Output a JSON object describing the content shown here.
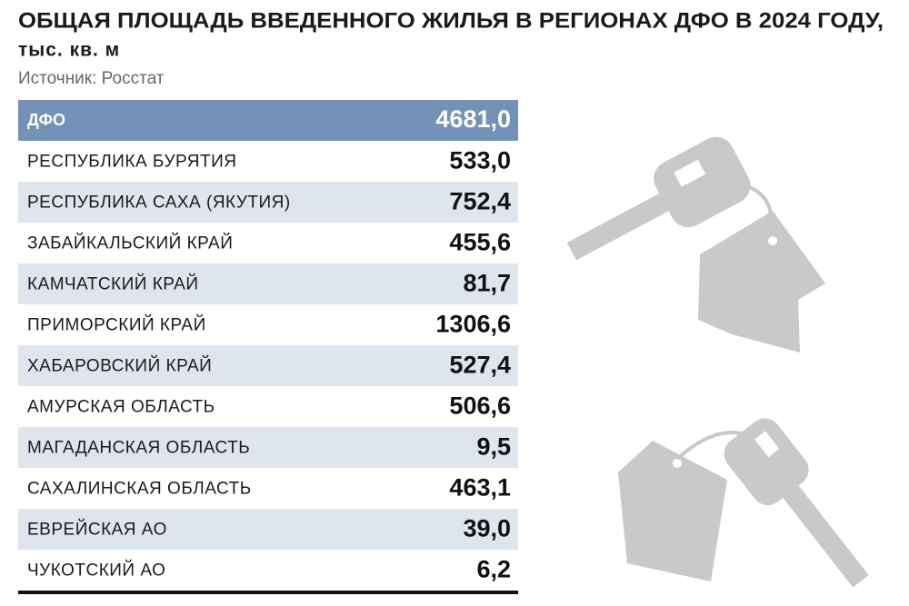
{
  "header": {
    "title": "ОБЩАЯ ПЛОЩАДЬ ВВЕДЕННОГО ЖИЛЬЯ В РЕГИОНАХ ДФО В 2024 ГОДУ,",
    "subtitle": "тыс. кв. м",
    "source": "Источник: Росстат"
  },
  "table": {
    "total": {
      "label": "ДФО",
      "value": "4681,0"
    },
    "rows": [
      {
        "label": "РЕСПУБЛИКА БУРЯТИЯ",
        "value": "533,0"
      },
      {
        "label": "РЕСПУБЛИКА САХА (ЯКУТИЯ)",
        "value": "752,4"
      },
      {
        "label": "ЗАБАЙКАЛЬСКИЙ КРАЙ",
        "value": "455,6"
      },
      {
        "label": "КАМЧАТСКИЙ КРАЙ",
        "value": "81,7"
      },
      {
        "label": "ПРИМОРСКИЙ КРАЙ",
        "value": "1306,6"
      },
      {
        "label": "ХАБАРОВСКИЙ КРАЙ",
        "value": "527,4"
      },
      {
        "label": "АМУРСКАЯ ОБЛАСТЬ",
        "value": "506,6"
      },
      {
        "label": "МАГАДАНСКАЯ ОБЛАСТЬ",
        "value": "9,5"
      },
      {
        "label": "САХАЛИНСКАЯ ОБЛАСТЬ",
        "value": "463,1"
      },
      {
        "label": "ЕВРЕЙСКАЯ АО",
        "value": "39,0"
      },
      {
        "label": "ЧУКОТСКИЙ АО",
        "value": "6,2"
      }
    ]
  }
}
